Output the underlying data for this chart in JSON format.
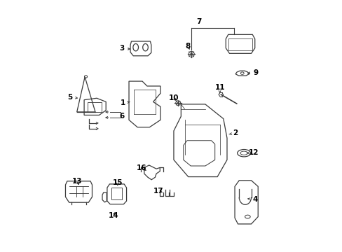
{
  "background_color": "#ffffff",
  "line_color": "#3a3a3a",
  "text_color": "#000000",
  "figsize": [
    4.89,
    3.6
  ],
  "dpi": 100,
  "parts_labels": [
    [
      1,
      0.3,
      0.595,
      0.33,
      0.6
    ],
    [
      2,
      0.765,
      0.47,
      0.73,
      0.465
    ],
    [
      3,
      0.295,
      0.82,
      0.34,
      0.818
    ],
    [
      4,
      0.845,
      0.195,
      0.813,
      0.2
    ],
    [
      5,
      0.082,
      0.62,
      0.115,
      0.615
    ],
    [
      6,
      0.295,
      0.54,
      0.245,
      0.545
    ],
    [
      7,
      0.615,
      0.93,
      0.615,
      0.93
    ],
    [
      8,
      0.568,
      0.83,
      0.58,
      0.808
    ],
    [
      9,
      0.85,
      0.72,
      0.805,
      0.718
    ],
    [
      10,
      0.51,
      0.615,
      0.527,
      0.598
    ],
    [
      11,
      0.7,
      0.66,
      0.7,
      0.635
    ],
    [
      12,
      0.84,
      0.39,
      0.81,
      0.388
    ],
    [
      13,
      0.112,
      0.27,
      0.122,
      0.248
    ],
    [
      14,
      0.262,
      0.13,
      0.27,
      0.152
    ],
    [
      15,
      0.278,
      0.265,
      0.278,
      0.245
    ],
    [
      16,
      0.378,
      0.325,
      0.405,
      0.312
    ],
    [
      17,
      0.447,
      0.232,
      0.472,
      0.222
    ]
  ]
}
